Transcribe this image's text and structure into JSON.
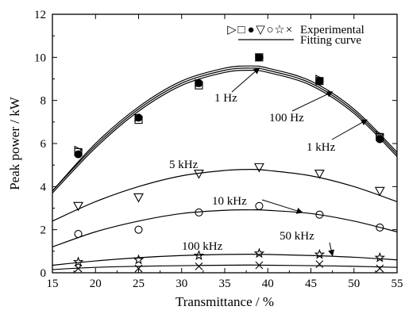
{
  "chart_data": {
    "type": "scatter",
    "title": "",
    "xlabel": "Transmittance / %",
    "ylabel": "Peak power / kW",
    "xlim": [
      15,
      55
    ],
    "ylim": [
      0,
      12
    ],
    "xticks": [
      15,
      20,
      25,
      30,
      35,
      40,
      45,
      50,
      55
    ],
    "yticks": [
      0,
      2,
      4,
      6,
      8,
      10,
      12
    ],
    "grid": false,
    "legend": {
      "position": "top-right",
      "entries": [
        {
          "label": "Experimental",
          "symbols": [
            "▷",
            "□",
            "●",
            "▽",
            "○",
            "☆",
            "×"
          ]
        },
        {
          "label": "Fitting curve",
          "symbols": []
        }
      ]
    },
    "series": [
      {
        "name": "1 Hz",
        "marker": "square",
        "x": [
          18,
          25,
          32,
          39,
          46,
          53
        ],
        "y": [
          5.6,
          7.1,
          8.7,
          10.0,
          8.9,
          6.3
        ],
        "fit": {
          "x": [
            15,
            20,
            25,
            30,
            35,
            38,
            40,
            45,
            50,
            55
          ],
          "y": [
            3.8,
            6.0,
            7.7,
            8.9,
            9.5,
            9.6,
            9.5,
            8.9,
            7.6,
            5.6
          ]
        }
      },
      {
        "name": "100 Hz",
        "marker": "triangle-right",
        "x": [
          18,
          25,
          32,
          39,
          46,
          53
        ],
        "y": [
          5.7,
          7.2,
          8.8,
          10.0,
          9.0,
          6.4
        ],
        "fit": {
          "x": [
            15,
            20,
            25,
            30,
            35,
            38,
            40,
            45,
            50,
            55
          ],
          "y": [
            3.8,
            5.9,
            7.6,
            8.8,
            9.4,
            9.5,
            9.4,
            8.8,
            7.5,
            5.5
          ]
        }
      },
      {
        "name": "1 kHz",
        "marker": "filled-circle",
        "x": [
          18,
          25,
          32,
          39,
          46,
          53
        ],
        "y": [
          5.5,
          7.2,
          8.8,
          10.0,
          8.9,
          6.2
        ],
        "fit": {
          "x": [
            15,
            20,
            25,
            30,
            35,
            38,
            40,
            45,
            50,
            55
          ],
          "y": [
            3.7,
            5.8,
            7.5,
            8.7,
            9.3,
            9.4,
            9.3,
            8.7,
            7.4,
            5.4
          ]
        }
      },
      {
        "name": "5 kHz",
        "marker": "triangle-down",
        "x": [
          18,
          25,
          32,
          39,
          46,
          53
        ],
        "y": [
          3.1,
          3.5,
          4.6,
          4.9,
          4.6,
          3.8
        ],
        "fit": {
          "x": [
            15,
            20,
            25,
            30,
            35,
            38,
            40,
            45,
            50,
            55
          ],
          "y": [
            2.4,
            3.3,
            4.0,
            4.5,
            4.75,
            4.8,
            4.75,
            4.5,
            4.0,
            3.3
          ]
        }
      },
      {
        "name": "10 kHz",
        "marker": "circle",
        "x": [
          18,
          25,
          32,
          39,
          46,
          53
        ],
        "y": [
          1.8,
          2.0,
          2.8,
          3.1,
          2.7,
          2.1
        ],
        "fit": {
          "x": [
            15,
            20,
            25,
            30,
            35,
            38,
            40,
            45,
            50,
            55
          ],
          "y": [
            1.2,
            1.9,
            2.4,
            2.75,
            2.9,
            2.92,
            2.9,
            2.75,
            2.4,
            1.9
          ]
        }
      },
      {
        "name": "50 kHz",
        "marker": "star",
        "x": [
          18,
          25,
          32,
          39,
          46,
          53
        ],
        "y": [
          0.5,
          0.6,
          0.8,
          0.9,
          0.85,
          0.7
        ],
        "fit": {
          "x": [
            15,
            20,
            25,
            30,
            35,
            38,
            40,
            45,
            50,
            55
          ],
          "y": [
            0.35,
            0.55,
            0.7,
            0.8,
            0.85,
            0.86,
            0.85,
            0.8,
            0.72,
            0.6
          ]
        }
      },
      {
        "name": "100 kHz",
        "marker": "cross",
        "x": [
          18,
          25,
          32,
          39,
          46,
          53
        ],
        "y": [
          0.2,
          0.2,
          0.3,
          0.35,
          0.4,
          0.2
        ],
        "fit": {
          "x": [
            15,
            20,
            25,
            30,
            35,
            38,
            40,
            45,
            50,
            55
          ],
          "y": [
            0.15,
            0.25,
            0.3,
            0.33,
            0.35,
            0.36,
            0.35,
            0.33,
            0.3,
            0.25
          ]
        }
      }
    ],
    "annotations": [
      {
        "text": "1 Hz",
        "points_to": [
          39,
          9.5
        ]
      },
      {
        "text": "100 Hz",
        "points_to": [
          47.5,
          8.4
        ]
      },
      {
        "text": "1 kHz",
        "points_to": [
          51.5,
          7.1
        ]
      },
      {
        "text": "5 kHz",
        "points_to": [
          null,
          null
        ]
      },
      {
        "text": "10 kHz",
        "points_to": [
          44,
          2.8
        ]
      },
      {
        "text": "50 kHz",
        "points_to": [
          47.5,
          0.8
        ]
      },
      {
        "text": "100 kHz",
        "points_to": [
          null,
          null
        ]
      }
    ]
  }
}
